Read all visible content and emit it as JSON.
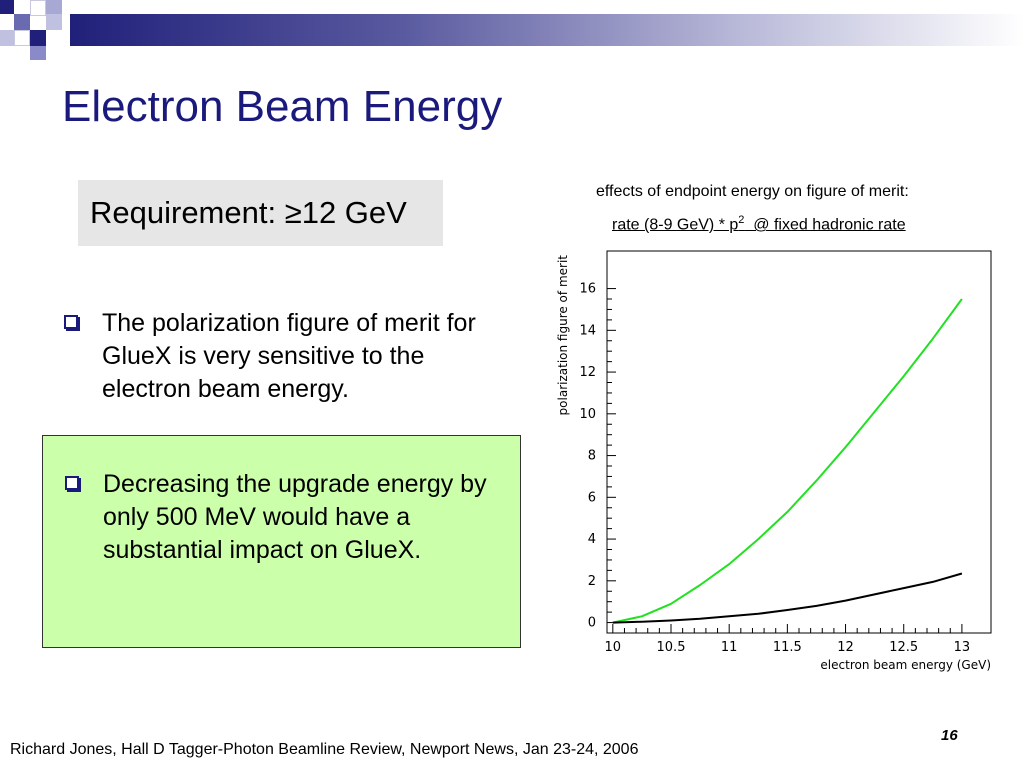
{
  "slide": {
    "title": "Electron Beam Energy",
    "requirement": "Requirement: ≥12 GeV",
    "bullet1": "The polarization figure of merit for GlueX is very sensitive to the electron beam energy.",
    "bullet2": "Decreasing the upgrade energy by only 500 MeV would have a substantial impact on GlueX.",
    "chart_caption_line1": "effects of endpoint energy on figure of merit:",
    "chart_caption_line2_pre": "rate (8-9 GeV) * p",
    "chart_caption_line2_sup": "2",
    "chart_caption_line2_post": "  @ fixed hadronic rate",
    "footer": "Richard Jones, Hall D Tagger-Photon Beamline Review, Newport News, Jan 23-24, 2006",
    "page_number": "16"
  },
  "colors": {
    "title": "#1a1a7c",
    "banner_dark": "#20207a",
    "green_box": "#ccffaa",
    "requirement_box": "#e6e6e6",
    "green_curve": "#22e022",
    "black_curve": "#000000"
  },
  "chart_data": {
    "type": "line",
    "xlabel": "electron beam energy (GeV)",
    "ylabel": "polarization figure of merit",
    "xlim": [
      9.95,
      13.25
    ],
    "ylim": [
      -0.5,
      17.8
    ],
    "xticks": [
      "10",
      "10.5",
      "11",
      "11.5",
      "12",
      "12.5",
      "13"
    ],
    "xtick_values": [
      10,
      10.5,
      11,
      11.5,
      12,
      12.5,
      13
    ],
    "yticks": [
      "0",
      "2",
      "4",
      "6",
      "8",
      "10",
      "12",
      "14",
      "16"
    ],
    "ytick_values": [
      0,
      2,
      4,
      6,
      8,
      10,
      12,
      14,
      16
    ],
    "grid": false,
    "series": [
      {
        "color": "#22e022",
        "x": [
          10.0,
          10.25,
          10.5,
          10.75,
          11.0,
          11.25,
          11.5,
          11.75,
          12.0,
          12.25,
          12.5,
          12.75,
          13.0
        ],
        "y": [
          0.0,
          0.3,
          0.9,
          1.8,
          2.8,
          4.0,
          5.3,
          6.8,
          8.4,
          10.1,
          11.8,
          13.6,
          15.5
        ]
      },
      {
        "color": "#000000",
        "x": [
          10.0,
          10.25,
          10.5,
          10.75,
          11.0,
          11.25,
          11.5,
          11.75,
          12.0,
          12.25,
          12.5,
          12.75,
          13.0
        ],
        "y": [
          0.0,
          0.04,
          0.1,
          0.18,
          0.3,
          0.42,
          0.6,
          0.8,
          1.05,
          1.35,
          1.65,
          1.95,
          2.35
        ]
      }
    ]
  }
}
